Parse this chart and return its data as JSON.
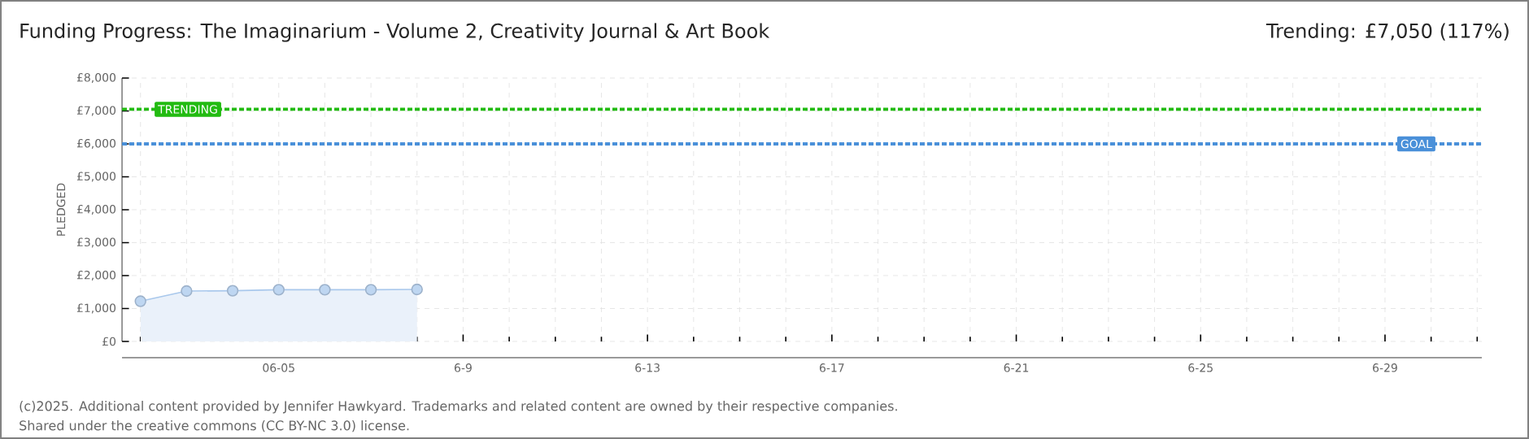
{
  "chart_data": {
    "type": "area",
    "title": "Funding Progress: The Imaginarium - Volume 2, Creativity Journal & Art Book",
    "subtitle": "Trending:  £7,050 (117%)",
    "ylabel": "PLEDGED",
    "categories": [
      null,
      null,
      null,
      "06-05",
      null,
      null,
      null,
      "6-9",
      null,
      null,
      null,
      "6-13",
      null,
      null,
      null,
      "6-17",
      null,
      null,
      null,
      "6-21",
      null,
      null,
      null,
      "6-25",
      null,
      null,
      null,
      "6-29",
      null,
      null
    ],
    "series": [
      {
        "color": "#a9c8ec",
        "values": [
          1220,
          1530,
          1540,
          1570,
          1570,
          1570,
          1580,
          null,
          null,
          null,
          null,
          null,
          null,
          null,
          null,
          null,
          null,
          null,
          null,
          null,
          null,
          null,
          null,
          null,
          null,
          null,
          null,
          null,
          null,
          null
        ]
      }
    ],
    "ylim": [
      0,
      8000
    ],
    "yticks": [
      {
        "value": 0,
        "label": "£0"
      },
      {
        "value": 1000,
        "label": "£1,000"
      },
      {
        "value": 2000,
        "label": "£2,000"
      },
      {
        "value": 3000,
        "label": "£3,000"
      },
      {
        "value": 4000,
        "label": "£4,000"
      },
      {
        "value": 5000,
        "label": "£5,000"
      },
      {
        "value": 6000,
        "label": "£6,000"
      },
      {
        "value": 7000,
        "label": "£7,000"
      },
      {
        "value": 8000,
        "label": "£8,000"
      }
    ],
    "ref_lines": [
      {
        "axis": "y",
        "value": 7050,
        "label": "TRENDING",
        "color": "#22bb11",
        "line_style": "dashed"
      },
      {
        "axis": "y",
        "value": 6000,
        "label": "GOAL",
        "color": "#4a90d9",
        "line_style": "dashed"
      }
    ],
    "grid": true,
    "marker": "circle",
    "annotations": [
      "(c)2025. Additional content provided by Jennifer Hawkyard. Trademarks and related content are owned by their respective companies.",
      "Shared under the creative commons (CC BY-NC 3.0) license."
    ]
  }
}
